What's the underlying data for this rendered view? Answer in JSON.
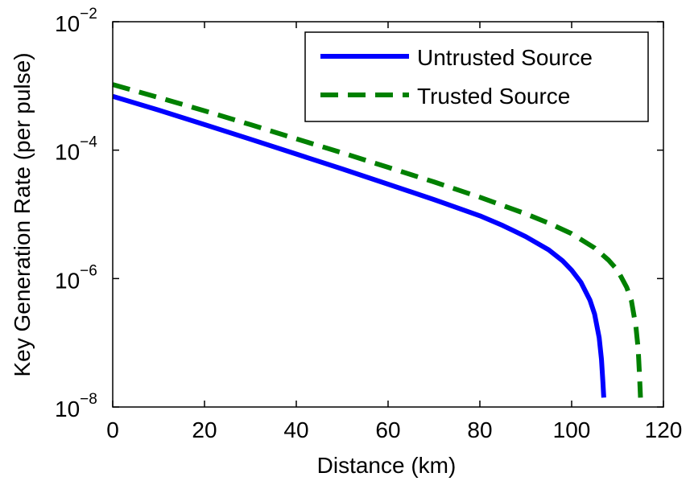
{
  "chart_data": {
    "type": "line",
    "title": "",
    "xlabel": "Distance (km)",
    "ylabel": "Key Generation Rate (per pulse)",
    "xlim": [
      0,
      120
    ],
    "ylim": [
      1e-08,
      0.01
    ],
    "yscale": "log",
    "grid": false,
    "legend_position": "top-right",
    "x_ticks": [
      {
        "value": 0,
        "label": "0"
      },
      {
        "value": 20,
        "label": "20"
      },
      {
        "value": 40,
        "label": "40"
      },
      {
        "value": 60,
        "label": "60"
      },
      {
        "value": 80,
        "label": "80"
      },
      {
        "value": 100,
        "label": "100"
      },
      {
        "value": 120,
        "label": "120"
      }
    ],
    "y_ticks": [
      {
        "value": 1e-08,
        "base": "10",
        "exp": "−8"
      },
      {
        "value": 1e-06,
        "base": "10",
        "exp": "−6"
      },
      {
        "value": 0.0001,
        "base": "10",
        "exp": "−4"
      },
      {
        "value": 0.01,
        "base": "10",
        "exp": "−2"
      }
    ],
    "series": [
      {
        "name": "Untrusted Source",
        "color": "#0000ff",
        "style": "solid",
        "points": [
          [
            0,
            0.00069
          ],
          [
            10,
            0.00042
          ],
          [
            20,
            0.00025
          ],
          [
            30,
            0.000148
          ],
          [
            40,
            8.7e-05
          ],
          [
            50,
            5.1e-05
          ],
          [
            60,
            2.95e-05
          ],
          [
            70,
            1.7e-05
          ],
          [
            80,
            9.5e-06
          ],
          [
            85,
            6.7e-06
          ],
          [
            90,
            4.5e-06
          ],
          [
            95,
            2.8e-06
          ],
          [
            98,
            1.9e-06
          ],
          [
            100,
            1.35e-06
          ],
          [
            102,
            8.8e-07
          ],
          [
            104,
            4.6e-07
          ],
          [
            105,
            2.8e-07
          ],
          [
            106,
            1.2e-07
          ],
          [
            106.5,
            5.5e-08
          ],
          [
            106.8,
            2.5e-08
          ],
          [
            107,
            1.4e-08
          ]
        ]
      },
      {
        "name": "Trusted Source",
        "color": "#008000",
        "style": "dashed",
        "points": [
          [
            0,
            0.00105
          ],
          [
            10,
            0.00066
          ],
          [
            20,
            0.00041
          ],
          [
            30,
            0.00025
          ],
          [
            40,
            0.00015
          ],
          [
            50,
            9.1e-05
          ],
          [
            60,
            5.4e-05
          ],
          [
            70,
            3.2e-05
          ],
          [
            80,
            1.85e-05
          ],
          [
            90,
            1.02e-05
          ],
          [
            95,
            7.3e-06
          ],
          [
            100,
            5e-06
          ],
          [
            105,
            3e-06
          ],
          [
            108,
            1.95e-06
          ],
          [
            110,
            1.35e-06
          ],
          [
            112,
            7.3e-07
          ],
          [
            113,
            4.6e-07
          ],
          [
            114,
            1.8e-07
          ],
          [
            114.5,
            8e-08
          ],
          [
            114.8,
            3e-08
          ],
          [
            115,
            1.4e-08
          ]
        ]
      }
    ]
  }
}
